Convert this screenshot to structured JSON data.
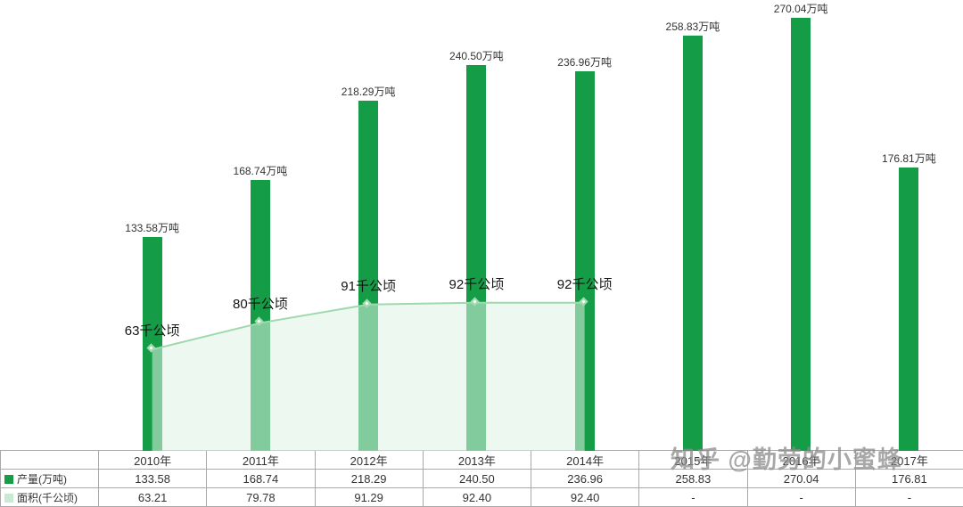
{
  "watermark": "知乎 @勤劳的小蜜蜂",
  "colors": {
    "bar": "#149c46",
    "area_fill": "#dcf2e3",
    "area_line": "#9fd9ae",
    "legend_production": "#149c46",
    "legend_area": "#c9ead2"
  },
  "chart_data": {
    "type": "bar",
    "categories": [
      "2010年",
      "2011年",
      "2012年",
      "2013年",
      "2014年",
      "2015年",
      "2016年",
      "2017年"
    ],
    "series": [
      {
        "name": "产量(万吨)",
        "type": "bar",
        "values": [
          133.58,
          168.74,
          218.29,
          240.5,
          236.96,
          258.83,
          270.04,
          176.81
        ],
        "labels": [
          "133.58万吨",
          "168.74万吨",
          "218.29万吨",
          "240.50万吨",
          "236.96万吨",
          "258.83万吨",
          "270.04万吨",
          "176.81万吨"
        ]
      },
      {
        "name": "面积(千公顷)",
        "type": "area",
        "values": [
          63.21,
          79.78,
          91.29,
          92.4,
          92.4,
          null,
          null,
          null
        ],
        "labels": [
          "63千公顷",
          "80千公顷",
          "91千公顷",
          "92千公顷",
          "92千公顷"
        ]
      }
    ],
    "ylim": [
      0,
      280
    ],
    "grid": false,
    "legend_position": "table-left"
  },
  "table": {
    "columns": [
      "2010年",
      "2011年",
      "2012年",
      "2013年",
      "2014年",
      "2015年",
      "2016年",
      "2017年"
    ],
    "row_headers": [
      "产量(万吨)",
      "面积(千公顷)"
    ],
    "rows": [
      [
        "133.58",
        "168.74",
        "218.29",
        "240.50",
        "236.96",
        "258.83",
        "270.04",
        "176.81"
      ],
      [
        "63.21",
        "79.78",
        "91.29",
        "92.40",
        "92.40",
        "-",
        "-",
        "-"
      ]
    ]
  }
}
